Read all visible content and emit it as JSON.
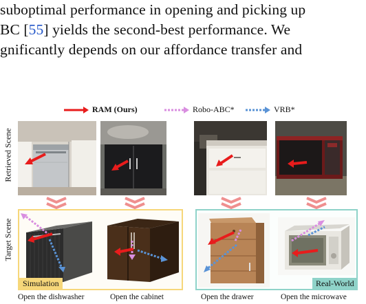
{
  "paragraph": {
    "line1": "suboptimal performance in opening and picking up",
    "line2_pre": "BC [",
    "line2_ref": "55",
    "line2_post": "] yields the second-best performance. We",
    "line3": "gnificantly depends on our affordance transfer and"
  },
  "legend": [
    {
      "label": "RAM (Ours)",
      "color": "#e81c1c",
      "style": "solid"
    },
    {
      "label": "Robo-ABC*",
      "color": "#d98ee0",
      "style": "dotted"
    },
    {
      "label": "VRB*",
      "color": "#5a93d6",
      "style": "dotted"
    }
  ],
  "row_labels": {
    "top": "Retrieved Scene",
    "bottom": "Target Scene"
  },
  "groups": {
    "simulation": "Simulation",
    "real_world": "Real-World"
  },
  "colors": {
    "simulation": "#f6d77a",
    "real_world": "#8fd3c9",
    "chevron": "#ef8f8f"
  },
  "captions": [
    "Open the dishwasher",
    "Open the cabinet",
    "Open the drawer",
    "Open the microwave"
  ]
}
